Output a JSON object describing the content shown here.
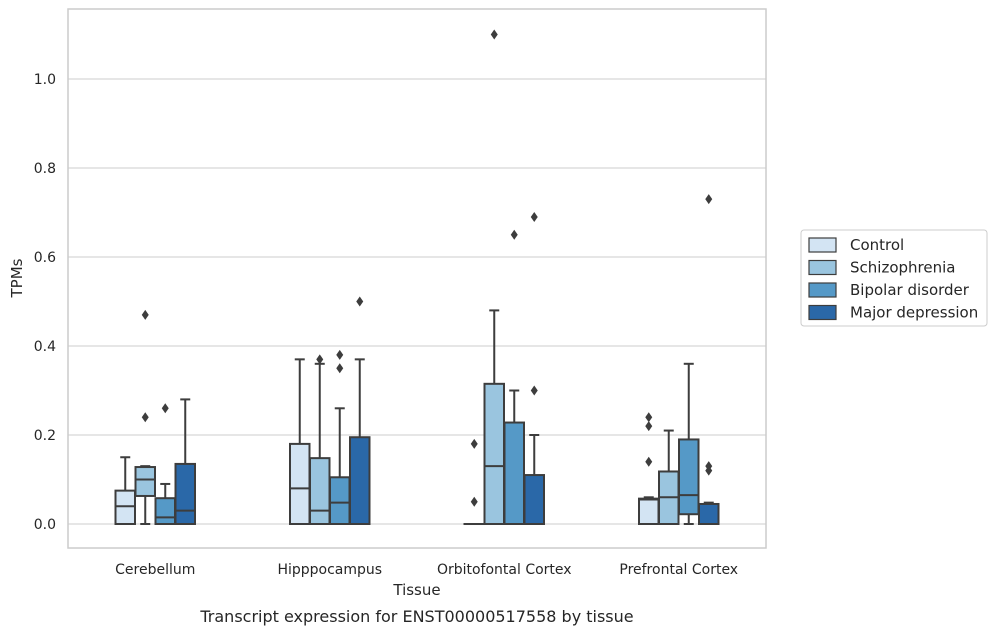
{
  "chart_data": {
    "type": "box",
    "caption": "Transcript expression for ENST00000517558 by tissue",
    "xlabel": "Tissue",
    "ylabel": "TPMs",
    "ylim": [
      -0.05,
      1.16
    ],
    "yticks": [
      0.0,
      0.2,
      0.4,
      0.6,
      0.8,
      1.0
    ],
    "ytick_labels": [
      "0.0",
      "0.2",
      "0.4",
      "0.6",
      "0.8",
      "1.0"
    ],
    "grid": "horizontal",
    "legend_position": "right",
    "categories": [
      "Cerebellum",
      "Hipppocampus",
      "Orbitofontal Cortex",
      "Prefrontal Cortex"
    ],
    "series": [
      {
        "name": "Control",
        "color": "#d3e4f3",
        "boxes": [
          {
            "q1": 0.0,
            "median": 0.04,
            "q3": 0.075,
            "whisker_low": 0.0,
            "whisker_high": 0.15,
            "outliers": []
          },
          {
            "q1": 0.0,
            "median": 0.08,
            "q3": 0.18,
            "whisker_low": 0.0,
            "whisker_high": 0.37,
            "outliers": []
          },
          {
            "q1": 0.0,
            "median": 0.0,
            "q3": 0.0,
            "whisker_low": 0.0,
            "whisker_high": 0.0,
            "outliers": [
              0.05,
              0.18
            ]
          },
          {
            "q1": 0.0,
            "median": 0.055,
            "q3": 0.057,
            "whisker_low": 0.0,
            "whisker_high": 0.06,
            "outliers": [
              0.14,
              0.22,
              0.24
            ]
          }
        ]
      },
      {
        "name": "Schizophrenia",
        "color": "#9ac5df",
        "boxes": [
          {
            "q1": 0.063,
            "median": 0.1,
            "q3": 0.128,
            "whisker_low": 0.0,
            "whisker_high": 0.13,
            "outliers": [
              0.24,
              0.47
            ]
          },
          {
            "q1": 0.0,
            "median": 0.03,
            "q3": 0.148,
            "whisker_low": 0.0,
            "whisker_high": 0.36,
            "outliers": [
              0.37
            ]
          },
          {
            "q1": 0.0,
            "median": 0.13,
            "q3": 0.315,
            "whisker_low": 0.0,
            "whisker_high": 0.48,
            "outliers": [
              1.1
            ]
          },
          {
            "q1": 0.0,
            "median": 0.06,
            "q3": 0.118,
            "whisker_low": 0.0,
            "whisker_high": 0.21,
            "outliers": []
          }
        ]
      },
      {
        "name": "Bipolar disorder",
        "color": "#5599c7",
        "boxes": [
          {
            "q1": 0.0,
            "median": 0.015,
            "q3": 0.058,
            "whisker_low": 0.0,
            "whisker_high": 0.09,
            "outliers": [
              0.26
            ]
          },
          {
            "q1": 0.0,
            "median": 0.048,
            "q3": 0.105,
            "whisker_low": 0.0,
            "whisker_high": 0.26,
            "outliers": [
              0.35,
              0.38
            ]
          },
          {
            "q1": 0.0,
            "median": 0.0,
            "q3": 0.228,
            "whisker_low": 0.0,
            "whisker_high": 0.3,
            "outliers": [
              0.65
            ]
          },
          {
            "q1": 0.022,
            "median": 0.065,
            "q3": 0.19,
            "whisker_low": 0.0,
            "whisker_high": 0.36,
            "outliers": []
          }
        ]
      },
      {
        "name": "Major depression",
        "color": "#2a68a8",
        "boxes": [
          {
            "q1": 0.0,
            "median": 0.03,
            "q3": 0.135,
            "whisker_low": 0.0,
            "whisker_high": 0.28,
            "outliers": []
          },
          {
            "q1": 0.0,
            "median": 0.0,
            "q3": 0.195,
            "whisker_low": 0.0,
            "whisker_high": 0.37,
            "outliers": [
              0.5
            ]
          },
          {
            "q1": 0.0,
            "median": 0.0,
            "q3": 0.11,
            "whisker_low": 0.0,
            "whisker_high": 0.2,
            "outliers": [
              0.3,
              0.69
            ]
          },
          {
            "q1": 0.0,
            "median": 0.0,
            "q3": 0.045,
            "whisker_low": 0.0,
            "whisker_high": 0.048,
            "outliers": [
              0.12,
              0.13,
              0.73
            ]
          }
        ]
      }
    ]
  }
}
